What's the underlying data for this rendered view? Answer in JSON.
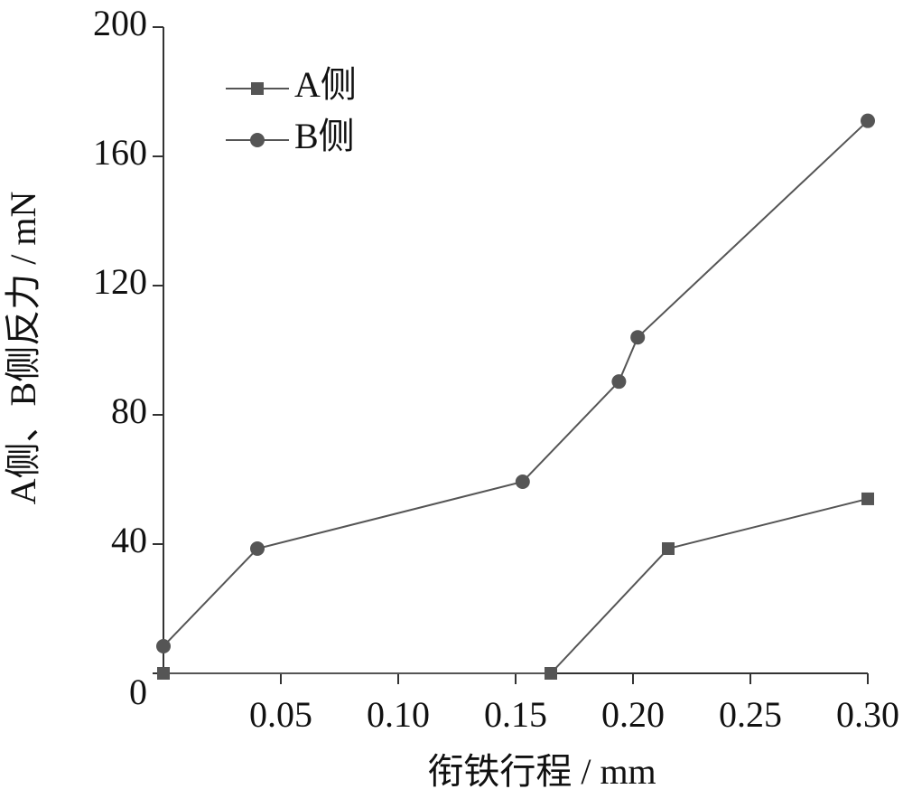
{
  "chart_data": {
    "type": "line",
    "x_label": "衔铁行程 / mm",
    "y_label": "A侧、B侧反力 / mN",
    "xlim": [
      0,
      0.3
    ],
    "xticks": [
      0.05,
      {
        "value": 0.1,
        "label": "0.10"
      },
      0.15,
      {
        "value": 0.2,
        "label": "0.20"
      },
      0.25,
      {
        "value": 0.3,
        "label": "0.30"
      }
    ],
    "ylim": [
      0,
      200
    ],
    "yticks": [
      0,
      40,
      80,
      120,
      160,
      200
    ],
    "series": [
      {
        "name": "A侧",
        "color": "#555555",
        "marker": "square",
        "x": [
          0,
          0.165,
          0.215,
          0.3
        ],
        "values": [
          0,
          0,
          38.6,
          54
        ]
      },
      {
        "name": "B侧",
        "color": "#555555",
        "marker": "circle",
        "x": [
          0,
          0.04,
          0.153,
          0.194,
          0.202,
          0.3
        ],
        "values": [
          8.4,
          38.6,
          59.3,
          90.3,
          104,
          171
        ]
      }
    ]
  }
}
